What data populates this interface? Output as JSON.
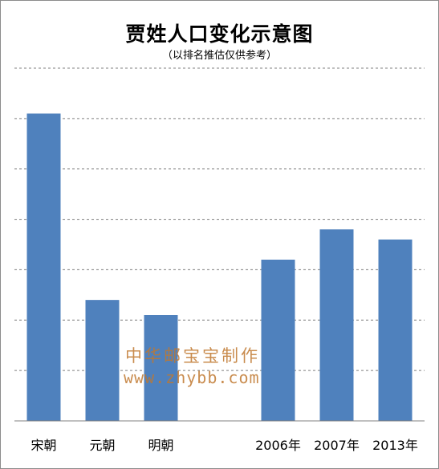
{
  "chart_data": {
    "type": "bar",
    "title": "贾姓人口变化示意图",
    "subtitle": "（以排名推估仅供参考）",
    "categories": [
      "宋朝",
      "元朝",
      "明朝",
      "",
      "2006年",
      "2007年",
      "2013年"
    ],
    "values": [
      61,
      24,
      21,
      null,
      32,
      38,
      36
    ],
    "ylim": [
      0,
      70
    ],
    "gridlines": [
      10,
      20,
      30,
      40,
      50,
      60,
      70
    ],
    "grid": "dashed-horizontal",
    "legend": "none",
    "bar_color": "#4f81bd"
  },
  "watermark": {
    "logo_text": "中华邮宝宝制作",
    "url": "www.zhybb.com"
  }
}
